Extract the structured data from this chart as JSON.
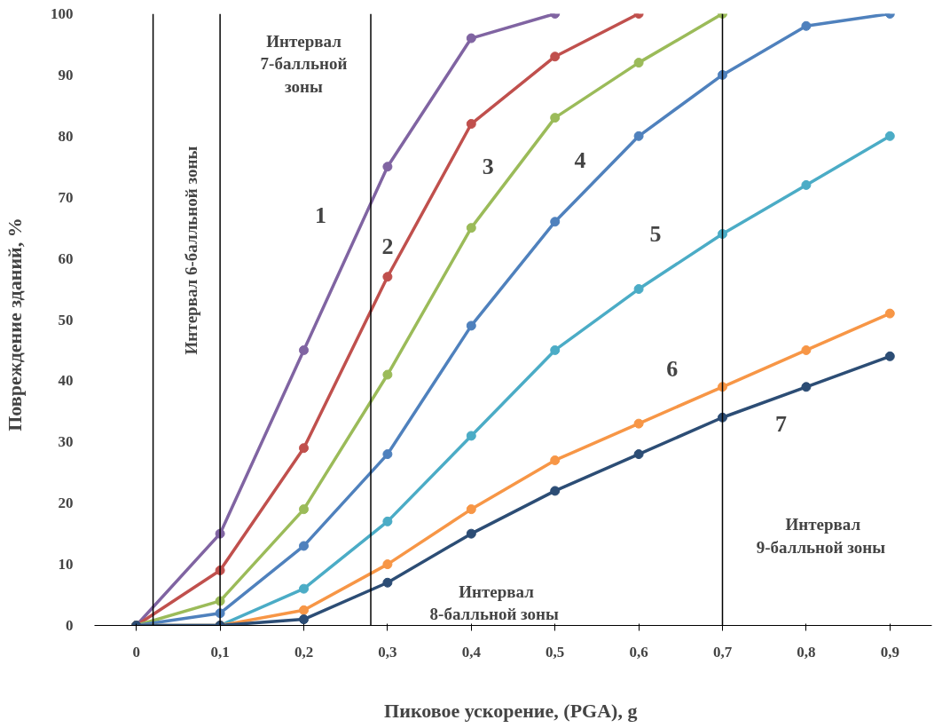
{
  "chart_data": {
    "type": "line",
    "xlabel": "Пиковое ускорение, (PGA),  g",
    "ylabel": "Повреждение  зданий,  %",
    "x": [
      0,
      0.1,
      0.2,
      0.3,
      0.4,
      0.5,
      0.6,
      0.7,
      0.8,
      0.9
    ],
    "xlim": [
      -0.05,
      0.95
    ],
    "xticks": [
      {
        "value": 0,
        "label": "0"
      },
      {
        "value": 0.1,
        "label": "0,1"
      },
      {
        "value": 0.2,
        "label": "0,2"
      },
      {
        "value": 0.3,
        "label": "0,3"
      },
      {
        "value": 0.4,
        "label": "0,4"
      },
      {
        "value": 0.5,
        "label": "0,5"
      },
      {
        "value": 0.6,
        "label": "0,6"
      },
      {
        "value": 0.7,
        "label": "0,7"
      },
      {
        "value": 0.8,
        "label": "0,8"
      },
      {
        "value": 0.9,
        "label": "0,9"
      }
    ],
    "ylim": [
      0,
      100
    ],
    "yticks": [
      0,
      10,
      20,
      30,
      40,
      50,
      60,
      70,
      80,
      90,
      100
    ],
    "grid": false,
    "marker": "circle",
    "line_style": "solid",
    "series": [
      {
        "name": "1",
        "color": "#8064a2",
        "values": [
          0,
          15,
          45,
          75,
          96,
          100,
          null,
          null,
          null,
          null
        ]
      },
      {
        "name": "2",
        "color": "#c0504d",
        "values": [
          0,
          9,
          29,
          57,
          82,
          93,
          100,
          null,
          null,
          null
        ]
      },
      {
        "name": "3",
        "color": "#9bbb59",
        "values": [
          0,
          4,
          19,
          41,
          65,
          83,
          92,
          100,
          null,
          null
        ]
      },
      {
        "name": "4",
        "color": "#4f81bd",
        "values": [
          0,
          2,
          13,
          28,
          49,
          66,
          80,
          90,
          98,
          100
        ]
      },
      {
        "name": "5",
        "color": "#4bacc6",
        "values": [
          0,
          0,
          6,
          17,
          31,
          45,
          55,
          64,
          72,
          80
        ]
      },
      {
        "name": "6",
        "color": "#f79646",
        "values": [
          0,
          0,
          2.5,
          10,
          19,
          27,
          33,
          39,
          45,
          51
        ]
      },
      {
        "name": "7",
        "color": "#2c4d75",
        "values": [
          0,
          0,
          1,
          7,
          15,
          22,
          28,
          34,
          39,
          44
        ]
      }
    ],
    "ref_lines": [
      {
        "axis": "x",
        "value": 0.02,
        "color": "#000000"
      },
      {
        "axis": "x",
        "value": 0.1,
        "color": "#000000"
      },
      {
        "axis": "x",
        "value": 0.28,
        "color": "#000000"
      },
      {
        "axis": "x",
        "value": 0.7,
        "color": "#000000"
      }
    ],
    "annotations": [
      "Интервал  6-балльной  зоны",
      "Интервал\n7-балльной\nзоны",
      "Интервал\n8-балльной  зоны",
      "Интервал\n9-балльной  зоны"
    ]
  }
}
